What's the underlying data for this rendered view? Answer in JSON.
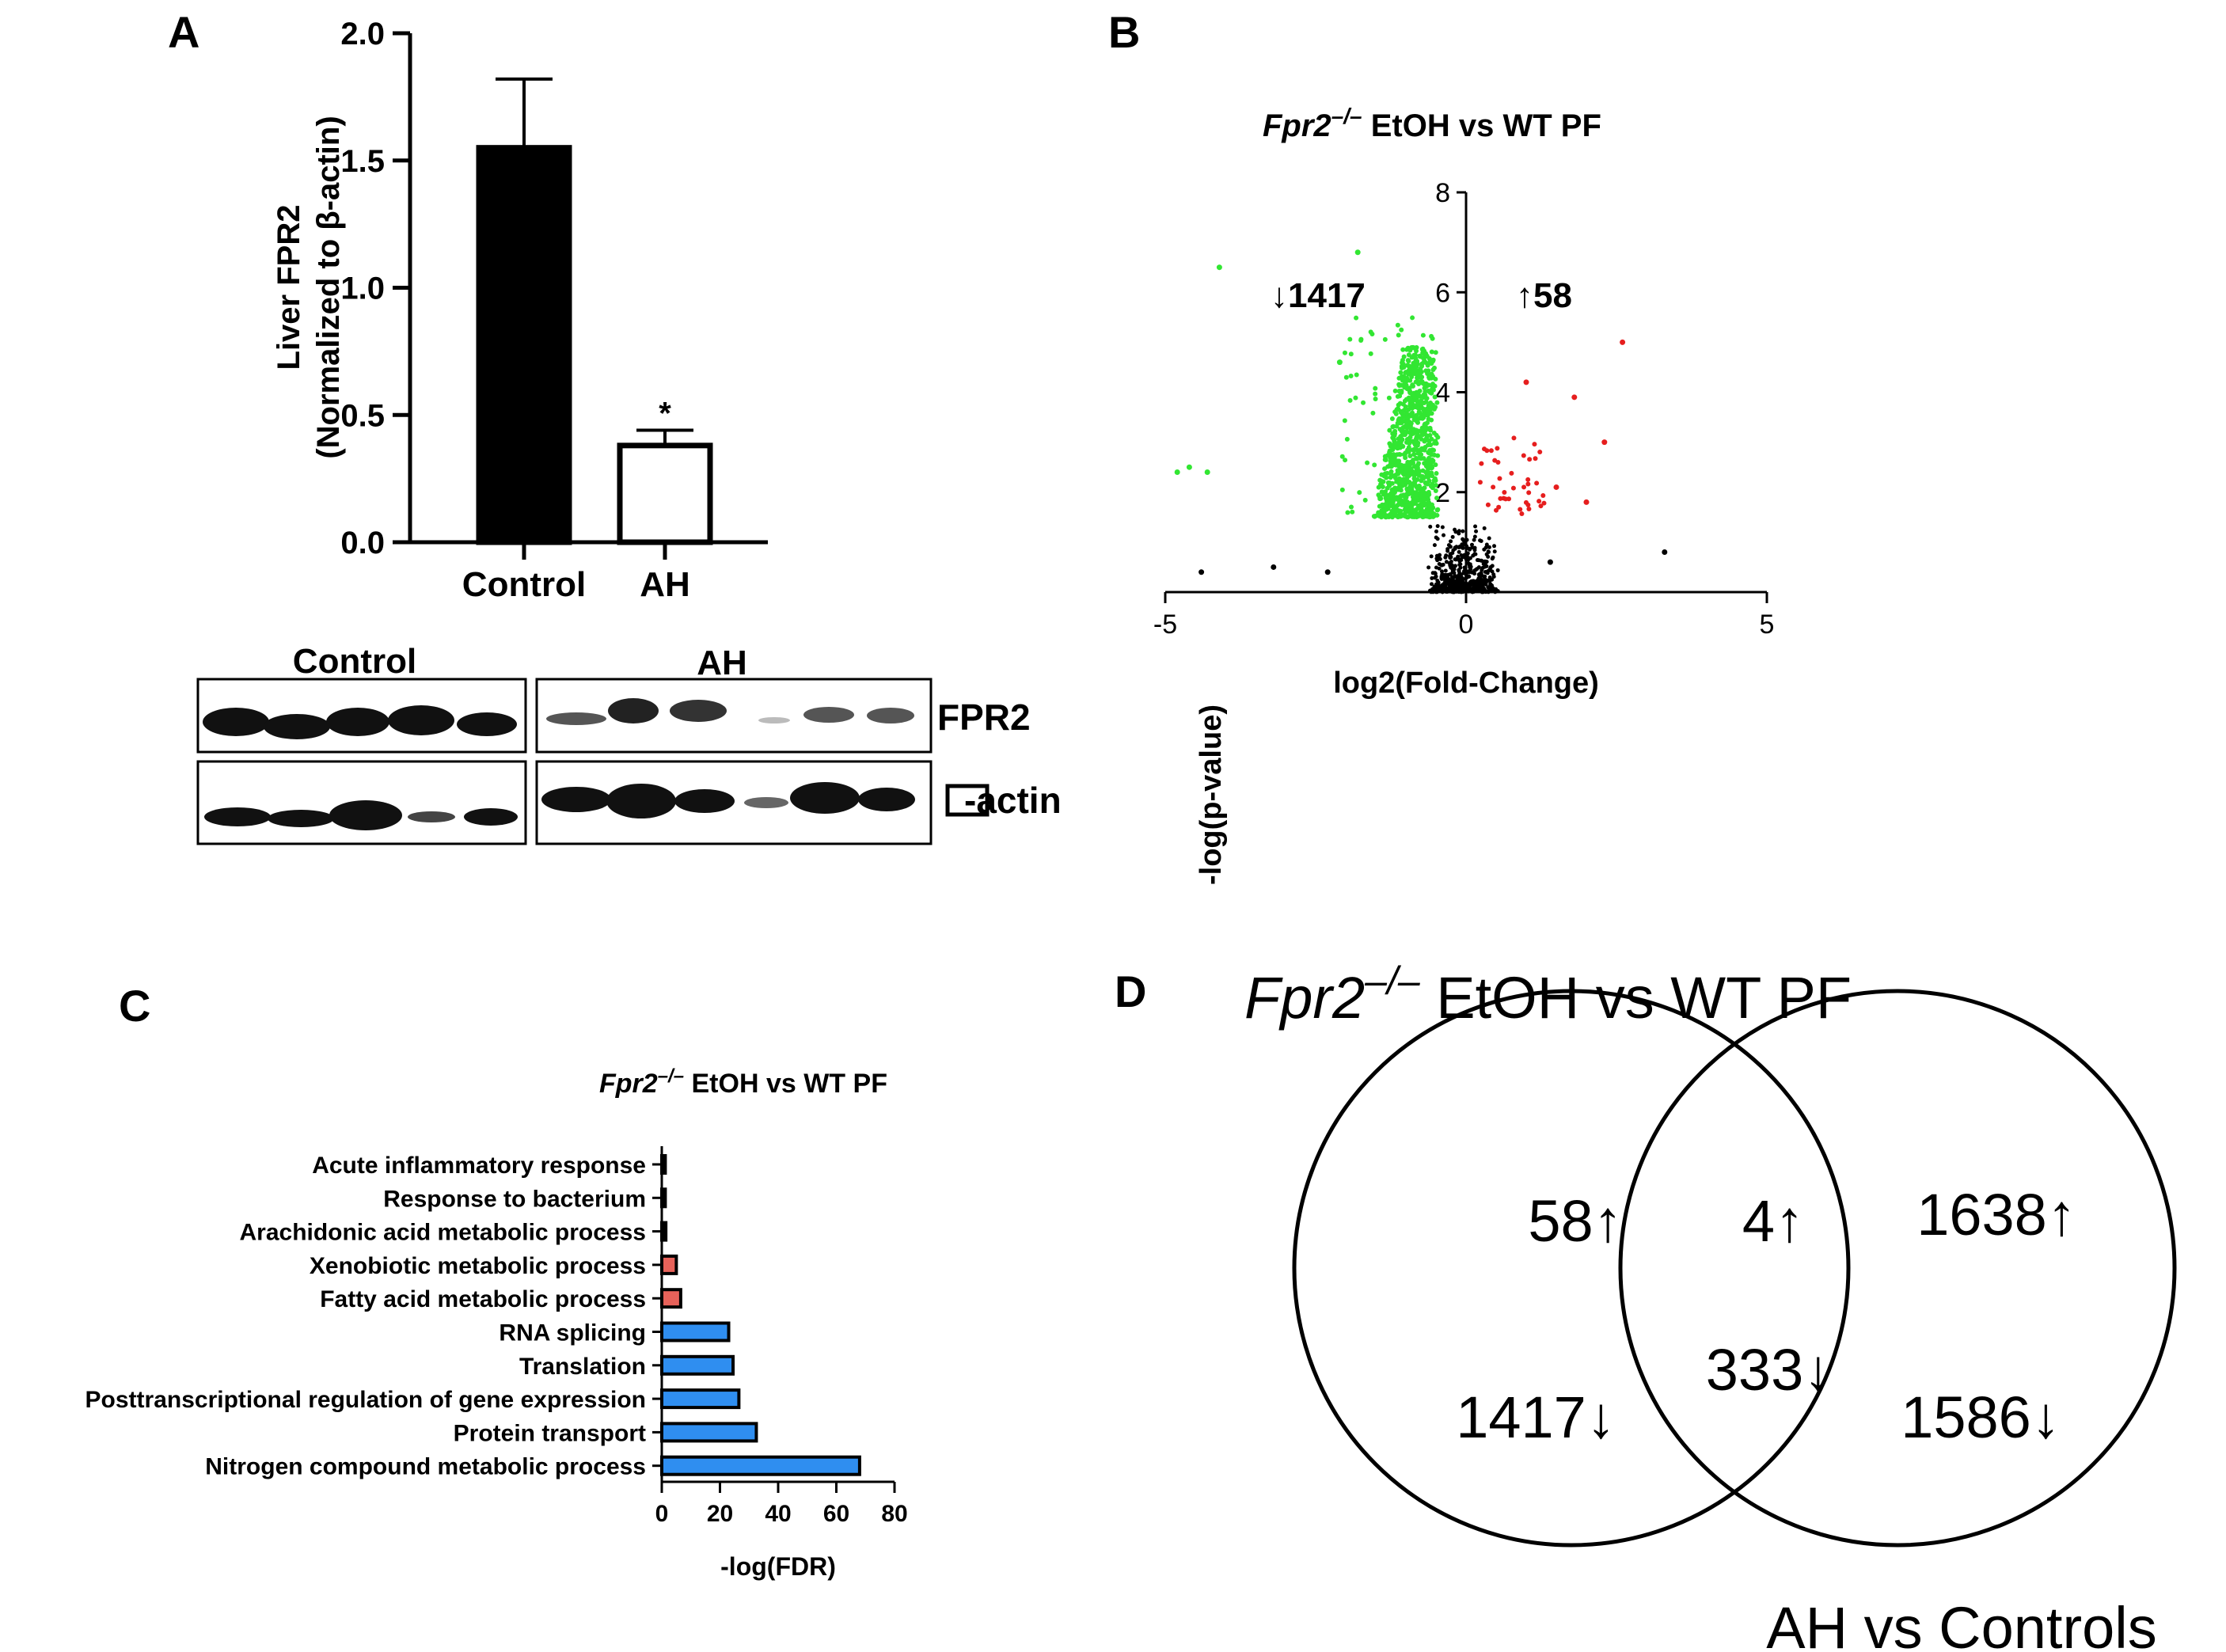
{
  "panels": {
    "A": "A",
    "B": "B",
    "C": "C",
    "D": "D"
  },
  "colors": {
    "black": "#000000",
    "green": "#32e632",
    "red": "#e61e1e",
    "blue_bar": "#2f8ef0",
    "red_bar": "#e8625a"
  },
  "icons": {
    "up_arrow": "↑",
    "down_arrow": "↓"
  },
  "western_blot": {
    "group_control": "Control",
    "group_ah": "AH",
    "band_fpr2": "FPR2",
    "band_actin": "-actin"
  },
  "chart_data": [
    {
      "panel": "A",
      "type": "bar",
      "title": "",
      "categories": [
        "Control",
        "AH"
      ],
      "values": [
        1.55,
        0.38
      ],
      "errors": [
        0.27,
        0.06
      ],
      "fills": [
        "#000000",
        "#ffffff"
      ],
      "significance": [
        "",
        "*"
      ],
      "ylabel_line1": "Liver FPR2",
      "ylabel_line2": "(Normalized to β-actin)",
      "xlabel": "",
      "ylim": [
        0,
        2.0
      ],
      "yticks": [
        "0.0",
        "0.5",
        "1.0",
        "1.5",
        "2.0"
      ]
    },
    {
      "panel": "B",
      "type": "scatter",
      "title_gene": "Fpr2",
      "title_sup": "–/–",
      "title_rest": " EtOH vs WT PF",
      "xlabel": "log2(Fold-Change)",
      "ylabel": "-log(p-value)",
      "xlim": [
        -5,
        5
      ],
      "ylim": [
        0,
        8
      ],
      "xticks": [
        "-5",
        "0",
        "5"
      ],
      "yticks": [
        "2",
        "4",
        "6",
        "8"
      ],
      "down_count": "1417",
      "up_count": "58",
      "notable_points": [
        {
          "x": -4.1,
          "y": 6.5,
          "group": "down"
        },
        {
          "x": -4.8,
          "y": 2.4,
          "group": "down"
        },
        {
          "x": -4.6,
          "y": 2.5,
          "group": "down"
        },
        {
          "x": -4.3,
          "y": 2.4,
          "group": "down"
        },
        {
          "x": -1.8,
          "y": 6.8,
          "group": "down"
        },
        {
          "x": -2.1,
          "y": 4.6,
          "group": "down"
        },
        {
          "x": 2.6,
          "y": 5.0,
          "group": "up"
        },
        {
          "x": 1.8,
          "y": 3.9,
          "group": "up"
        },
        {
          "x": 2.3,
          "y": 3.0,
          "group": "up"
        },
        {
          "x": 1.5,
          "y": 2.1,
          "group": "up"
        },
        {
          "x": 2.0,
          "y": 1.8,
          "group": "up"
        },
        {
          "x": 1.0,
          "y": 4.2,
          "group": "up"
        },
        {
          "x": 3.3,
          "y": 0.8,
          "group": "ns"
        },
        {
          "x": -4.4,
          "y": 0.4,
          "group": "ns"
        },
        {
          "x": -3.2,
          "y": 0.5,
          "group": "ns"
        },
        {
          "x": -2.3,
          "y": 0.4,
          "group": "ns"
        },
        {
          "x": 1.4,
          "y": 0.6,
          "group": "ns"
        }
      ]
    },
    {
      "panel": "C",
      "type": "bar",
      "orientation": "horizontal",
      "title_gene": "Fpr2",
      "title_sup": "–/–",
      "title_rest": " EtOH vs WT PF",
      "categories": [
        "Acute inflammatory response",
        "Response to bacterium",
        "Arachidonic acid metabolic process",
        "Xenobiotic metabolic process",
        "Fatty acid metabolic process",
        "RNA splicing",
        "Translation",
        "Posttranscriptional regulation of gene expression",
        "Protein transport",
        "Nitrogen compound metabolic process"
      ],
      "values": [
        1.2,
        1.2,
        1.4,
        5.0,
        6.5,
        23,
        24.5,
        26.5,
        32.5,
        68
      ],
      "groups": [
        "black",
        "black",
        "black",
        "red",
        "red",
        "blue",
        "blue",
        "blue",
        "blue",
        "blue"
      ],
      "xlabel": "-log(FDR)",
      "xlim": [
        0,
        80
      ],
      "xticks": [
        "0",
        "20",
        "40",
        "60",
        "80"
      ]
    },
    {
      "panel": "D",
      "type": "venn",
      "left_title_gene": "Fpr2",
      "left_title_sup": "–/–",
      "left_title_rest": " EtOH vs WT PF",
      "right_title": "AH vs Controls",
      "left_only_up": "58",
      "left_only_down": "1417",
      "overlap_up": "4",
      "overlap_down": "333",
      "right_only_up": "1638",
      "right_only_down": "1586"
    }
  ]
}
